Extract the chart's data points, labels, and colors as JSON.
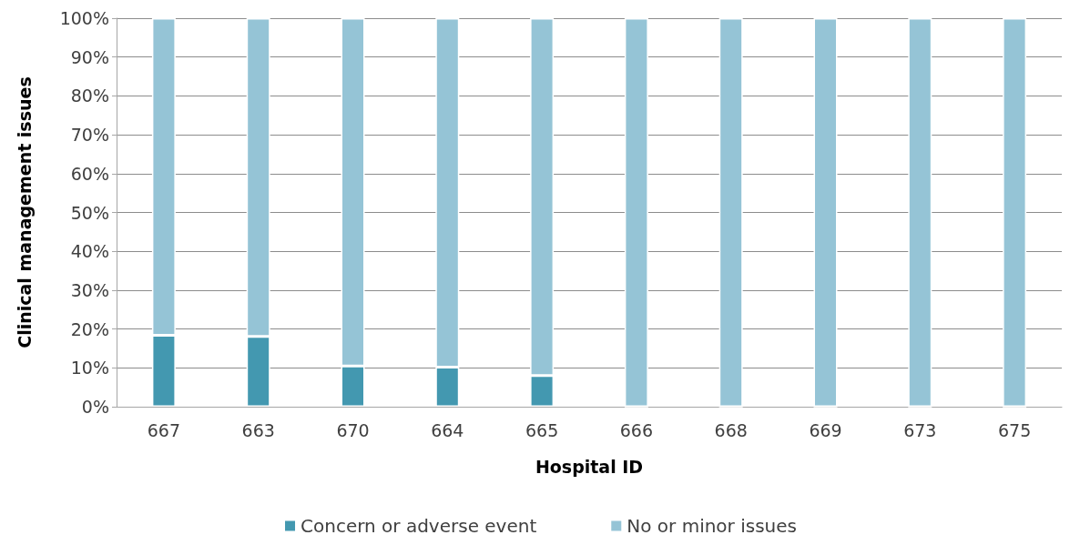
{
  "chart_data": {
    "type": "bar",
    "stacked": true,
    "xlabel": "Hospital ID",
    "ylabel": "Clinical management issues",
    "categories": [
      "667",
      "663",
      "670",
      "664",
      "665",
      "666",
      "668",
      "669",
      "673",
      "675"
    ],
    "series": [
      {
        "name": "Concern or adverse event",
        "color": "#4398b0",
        "values": [
          18.4,
          18.1,
          10.5,
          10.2,
          8.0,
          0,
          0,
          0,
          0,
          0
        ]
      },
      {
        "name": "No or minor issues",
        "color": "#95c4d6",
        "values": [
          81.6,
          81.9,
          89.5,
          89.8,
          92.0,
          100,
          100,
          100,
          100,
          100
        ]
      }
    ],
    "ylim": [
      0,
      100
    ],
    "yticks": [
      {
        "value": 0,
        "label": "0%"
      },
      {
        "value": 10,
        "label": "10%"
      },
      {
        "value": 20,
        "label": "20%"
      },
      {
        "value": 30,
        "label": "30%"
      },
      {
        "value": 40,
        "label": "40%"
      },
      {
        "value": 50,
        "label": "50%"
      },
      {
        "value": 60,
        "label": "60%"
      },
      {
        "value": 70,
        "label": "70%"
      },
      {
        "value": 80,
        "label": "80%"
      },
      {
        "value": 90,
        "label": "90%"
      },
      {
        "value": 100,
        "label": "100%"
      }
    ],
    "grid": "y",
    "legend": "bottom"
  }
}
